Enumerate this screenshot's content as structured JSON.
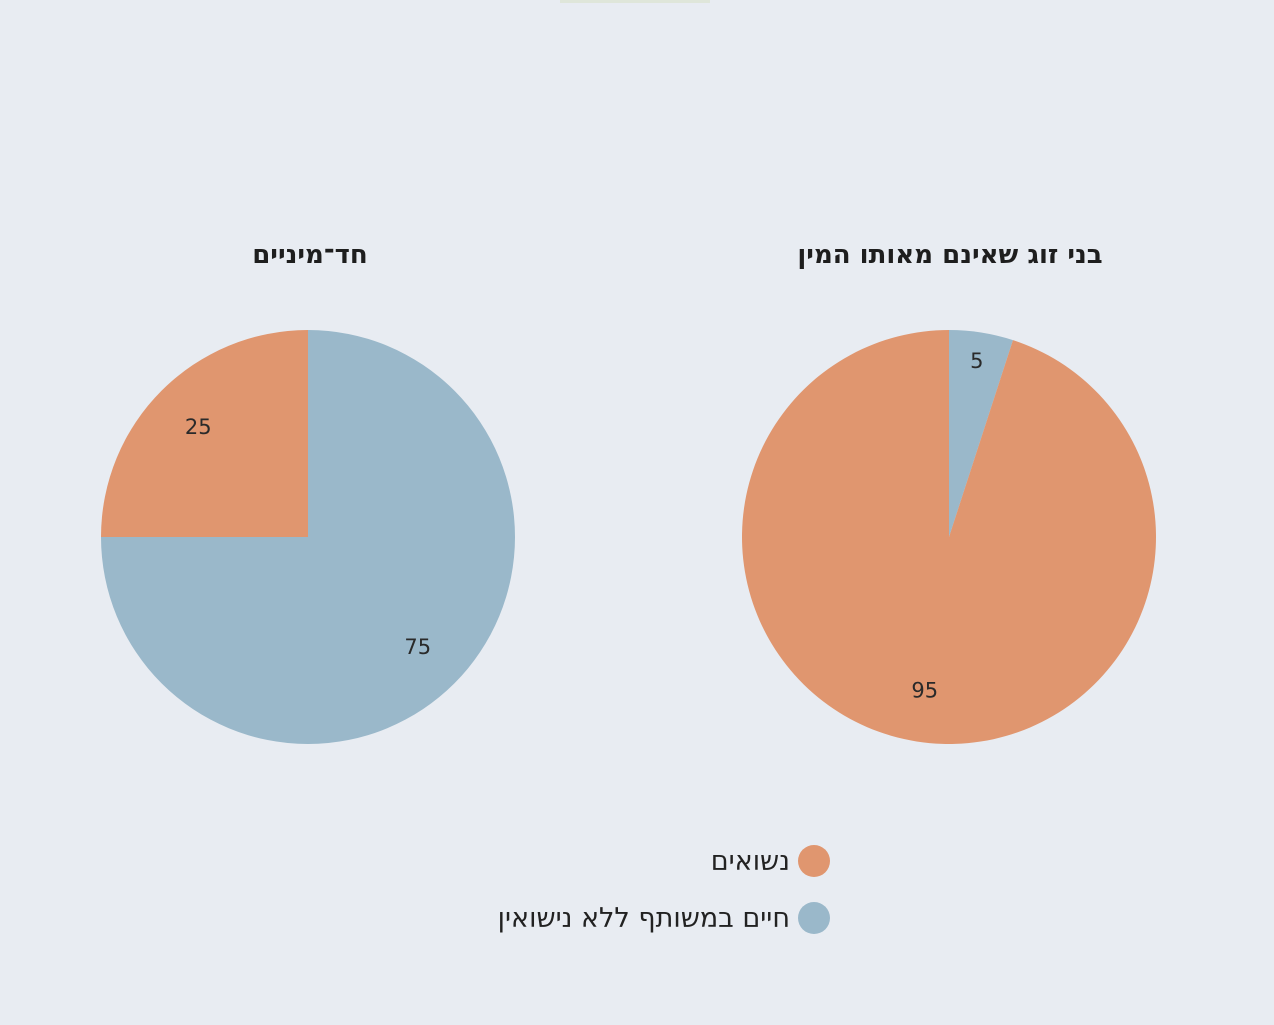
{
  "colors": {
    "married": "#e0966f",
    "cohabiting": "#9ab8ca",
    "background": "#e8ecf2"
  },
  "chart_data": [
    {
      "type": "pie",
      "title": "חד־מיניים",
      "slices": [
        {
          "label": "נשואים",
          "value": 25,
          "color": "#e0966f"
        },
        {
          "label": "חיים במשותף ללא נישואין",
          "value": 75,
          "color": "#9ab8ca"
        }
      ]
    },
    {
      "type": "pie",
      "title": "בני זוג שאינם מאותו המין",
      "slices": [
        {
          "label": "נשואים",
          "value": 95,
          "color": "#e0966f"
        },
        {
          "label": "חיים במשותף ללא נישואין",
          "value": 5,
          "color": "#9ab8ca"
        }
      ]
    }
  ],
  "legend": [
    {
      "label": "נשואים",
      "color": "#e0966f"
    },
    {
      "label": "חיים במשותף ללא נישואין",
      "color": "#9ab8ca"
    }
  ]
}
